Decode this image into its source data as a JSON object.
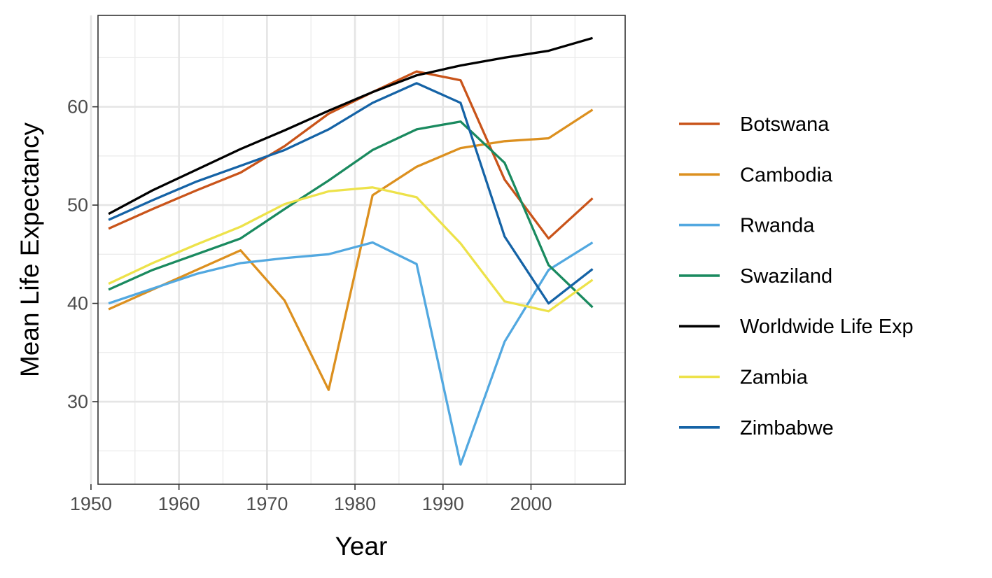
{
  "chart_data": {
    "type": "line",
    "xlabel": "Year",
    "ylabel": "Mean Life Expectancy",
    "xlim": [
      1950.8,
      2010.7
    ],
    "ylim": [
      21.6,
      69.3
    ],
    "x_ticks": [
      1950,
      1960,
      1970,
      1980,
      1990,
      2000
    ],
    "y_ticks": [
      30,
      40,
      50,
      60
    ],
    "grid": true,
    "legend_position": "right",
    "x": [
      1952,
      1957,
      1962,
      1967,
      1972,
      1977,
      1982,
      1987,
      1992,
      1997,
      2002,
      2007
    ],
    "series": [
      {
        "name": "Botswana",
        "color": "#c9541a",
        "values": [
          47.6,
          49.6,
          51.5,
          53.3,
          56.0,
          59.3,
          61.5,
          63.6,
          62.7,
          52.6,
          46.6,
          50.7
        ]
      },
      {
        "name": "Cambodia",
        "color": "#dc901f",
        "values": [
          39.4,
          41.4,
          43.4,
          45.4,
          40.3,
          31.2,
          51.0,
          53.9,
          55.8,
          56.5,
          56.8,
          59.7
        ]
      },
      {
        "name": "Rwanda",
        "color": "#52a8e0",
        "values": [
          40.0,
          41.5,
          43.0,
          44.1,
          44.6,
          45.0,
          46.2,
          44.0,
          23.6,
          36.1,
          43.4,
          46.2
        ]
      },
      {
        "name": "Swaziland",
        "color": "#1a8a5f",
        "values": [
          41.4,
          43.4,
          45.0,
          46.6,
          49.6,
          52.5,
          55.6,
          57.7,
          58.5,
          54.3,
          43.9,
          39.6
        ]
      },
      {
        "name": "Worldwide Life Exp",
        "color": "#000000",
        "values": [
          49.1,
          51.5,
          53.6,
          55.7,
          57.6,
          59.6,
          61.5,
          63.2,
          64.2,
          65.0,
          65.7,
          67.0
        ]
      },
      {
        "name": "Zambia",
        "color": "#ede24a",
        "values": [
          42.0,
          44.1,
          46.0,
          47.8,
          50.1,
          51.4,
          51.8,
          50.8,
          46.1,
          40.2,
          39.2,
          42.4
        ]
      },
      {
        "name": "Zimbabwe",
        "color": "#1563a6",
        "values": [
          48.5,
          50.5,
          52.4,
          54.0,
          55.6,
          57.7,
          60.4,
          62.4,
          60.4,
          46.8,
          40.0,
          43.5
        ]
      }
    ]
  }
}
